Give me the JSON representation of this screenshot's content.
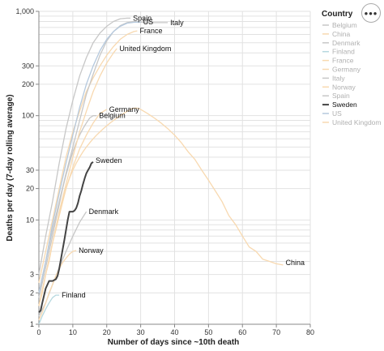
{
  "menu": {
    "icon": "ellipsis-icon",
    "glyph": "•••"
  },
  "chart_data": {
    "type": "line",
    "xlabel": "Number of days since ~10th death",
    "ylabel": "Deaths per day (7-day rolling average)",
    "x_scale": "linear",
    "y_scale": "log",
    "xlim": [
      0,
      80
    ],
    "ylim": [
      1,
      1000
    ],
    "x_ticks": [
      "0",
      "10",
      "20",
      "30",
      "40",
      "50",
      "60",
      "70",
      "80"
    ],
    "y_tick_values": [
      1,
      2,
      3,
      10,
      20,
      30,
      100,
      200,
      300,
      1000
    ],
    "y_tick_labels": [
      "1",
      "2",
      "3",
      "10",
      "20",
      "30",
      "100",
      "200",
      "300",
      "1,000"
    ],
    "grid": true,
    "legend": {
      "title": "Country",
      "position": "right"
    },
    "highlighted": "Sweden",
    "colors": {
      "Belgium": "#c7c7c7",
      "China": "#f8d9b0",
      "Denmark": "#c7c7c7",
      "Finland": "#b6d8df",
      "France": "#f8d9b0",
      "Germany": "#f8d9b0",
      "Italy": "#c7c7c7",
      "Norway": "#f8d9b0",
      "Spain": "#c7c7c7",
      "Sweden": "#444444",
      "US": "#b5c9de",
      "United Kingdom": "#f8d9b0"
    },
    "series": [
      {
        "name": "Belgium",
        "label": "Belgium",
        "label_at": [
          17,
          100
        ],
        "points": [
          [
            0,
            1.8
          ],
          [
            1,
            2.5
          ],
          [
            2,
            3.5
          ],
          [
            3,
            5
          ],
          [
            4,
            7
          ],
          [
            5,
            10
          ],
          [
            6,
            14
          ],
          [
            7,
            20
          ],
          [
            8,
            27
          ],
          [
            9,
            35
          ],
          [
            10,
            45
          ],
          [
            11,
            55
          ],
          [
            12,
            65
          ],
          [
            13,
            75
          ],
          [
            14,
            85
          ],
          [
            15,
            95
          ],
          [
            16,
            100
          ],
          [
            17,
            100
          ]
        ]
      },
      {
        "name": "China",
        "label": "China",
        "label_at": [
          72,
          3.9
        ],
        "points": [
          [
            0,
            1.5
          ],
          [
            1,
            2
          ],
          [
            2,
            3
          ],
          [
            3,
            4
          ],
          [
            4,
            6
          ],
          [
            5,
            8
          ],
          [
            6,
            11
          ],
          [
            7,
            15
          ],
          [
            8,
            20
          ],
          [
            9,
            25
          ],
          [
            10,
            30
          ],
          [
            11,
            35
          ],
          [
            12,
            40
          ],
          [
            13,
            45
          ],
          [
            14,
            50
          ],
          [
            15,
            55
          ],
          [
            16,
            60
          ],
          [
            17,
            65
          ],
          [
            18,
            70
          ],
          [
            19,
            75
          ],
          [
            20,
            80
          ],
          [
            21,
            85
          ],
          [
            22,
            90
          ],
          [
            23,
            95
          ],
          [
            24,
            100
          ],
          [
            25,
            105
          ],
          [
            26,
            110
          ],
          [
            27,
            115
          ],
          [
            28,
            118
          ],
          [
            29,
            118
          ],
          [
            30,
            115
          ],
          [
            32,
            105
          ],
          [
            34,
            95
          ],
          [
            36,
            85
          ],
          [
            38,
            75
          ],
          [
            40,
            65
          ],
          [
            42,
            55
          ],
          [
            44,
            45
          ],
          [
            46,
            38
          ],
          [
            48,
            30
          ],
          [
            50,
            24
          ],
          [
            52,
            19
          ],
          [
            54,
            15
          ],
          [
            56,
            11
          ],
          [
            58,
            9
          ],
          [
            60,
            7
          ],
          [
            62,
            5.5
          ],
          [
            64,
            5
          ],
          [
            66,
            4.2
          ],
          [
            68,
            4
          ],
          [
            70,
            3.8
          ],
          [
            72,
            3.7
          ]
        ]
      },
      {
        "name": "Denmark",
        "label": "Denmark",
        "label_at": [
          14,
          12
        ],
        "points": [
          [
            0,
            1.2
          ],
          [
            2,
            1.6
          ],
          [
            4,
            2.4
          ],
          [
            6,
            3.5
          ],
          [
            8,
            5
          ],
          [
            10,
            7
          ],
          [
            12,
            9.5
          ],
          [
            14,
            12
          ]
        ]
      },
      {
        "name": "Finland",
        "label": "Finland",
        "label_at": [
          6,
          1.9
        ],
        "points": [
          [
            0,
            1
          ],
          [
            1,
            1.2
          ],
          [
            2,
            1.4
          ],
          [
            3,
            1.6
          ],
          [
            4,
            1.8
          ],
          [
            5,
            1.9
          ],
          [
            6,
            1.9
          ]
        ]
      },
      {
        "name": "France",
        "label": "France",
        "label_at": [
          29,
          650
        ],
        "points": [
          [
            0,
            2.5
          ],
          [
            2,
            5
          ],
          [
            4,
            10
          ],
          [
            6,
            20
          ],
          [
            8,
            40
          ],
          [
            10,
            70
          ],
          [
            12,
            110
          ],
          [
            14,
            170
          ],
          [
            16,
            230
          ],
          [
            18,
            300
          ],
          [
            20,
            380
          ],
          [
            22,
            460
          ],
          [
            24,
            540
          ],
          [
            26,
            600
          ],
          [
            28,
            640
          ],
          [
            29,
            650
          ]
        ]
      },
      {
        "name": "Germany",
        "label": "Germany",
        "label_at": [
          20,
          115
        ],
        "points": [
          [
            0,
            1.5
          ],
          [
            2,
            3
          ],
          [
            4,
            6
          ],
          [
            6,
            11
          ],
          [
            8,
            20
          ],
          [
            10,
            32
          ],
          [
            12,
            48
          ],
          [
            14,
            65
          ],
          [
            16,
            85
          ],
          [
            18,
            105
          ],
          [
            20,
            115
          ]
        ]
      },
      {
        "name": "Italy",
        "label": "Italy",
        "label_at": [
          38,
          780
        ],
        "points": [
          [
            0,
            2
          ],
          [
            2,
            4
          ],
          [
            4,
            8
          ],
          [
            6,
            15
          ],
          [
            8,
            28
          ],
          [
            10,
            50
          ],
          [
            12,
            90
          ],
          [
            14,
            160
          ],
          [
            16,
            250
          ],
          [
            18,
            380
          ],
          [
            20,
            520
          ],
          [
            22,
            640
          ],
          [
            24,
            730
          ],
          [
            26,
            780
          ],
          [
            28,
            800
          ],
          [
            30,
            790
          ],
          [
            32,
            780
          ],
          [
            34,
            780
          ],
          [
            36,
            780
          ],
          [
            38,
            780
          ]
        ]
      },
      {
        "name": "Norway",
        "label": "Norway",
        "label_at": [
          11,
          5.1
        ],
        "points": [
          [
            0,
            1.1
          ],
          [
            1,
            1.3
          ],
          [
            2,
            1.6
          ],
          [
            3,
            2
          ],
          [
            4,
            2.4
          ],
          [
            5,
            2.9
          ],
          [
            6,
            3.4
          ],
          [
            7,
            3.9
          ],
          [
            8,
            4.3
          ],
          [
            9,
            4.7
          ],
          [
            10,
            5
          ],
          [
            11,
            5.1
          ]
        ]
      },
      {
        "name": "Spain",
        "label": "Spain",
        "label_at": [
          27,
          860
        ],
        "points": [
          [
            0,
            3
          ],
          [
            2,
            7
          ],
          [
            4,
            15
          ],
          [
            6,
            35
          ],
          [
            8,
            75
          ],
          [
            10,
            140
          ],
          [
            12,
            240
          ],
          [
            14,
            360
          ],
          [
            16,
            500
          ],
          [
            18,
            620
          ],
          [
            20,
            720
          ],
          [
            22,
            800
          ],
          [
            24,
            850
          ],
          [
            26,
            860
          ],
          [
            27,
            860
          ]
        ]
      },
      {
        "name": "Sweden",
        "label": "Sweden",
        "label_at": [
          16,
          37
        ],
        "points": [
          [
            0,
            1.3
          ],
          [
            0.5,
            1.35
          ],
          [
            1,
            1.6
          ],
          [
            2,
            2.2
          ],
          [
            3,
            2.6
          ],
          [
            4,
            2.6
          ],
          [
            5,
            2.7
          ],
          [
            5.5,
            2.9
          ],
          [
            6,
            3.4
          ],
          [
            6.5,
            4.2
          ],
          [
            7,
            5.2
          ],
          [
            7.5,
            6.4
          ],
          [
            8,
            8
          ],
          [
            8.5,
            10
          ],
          [
            9,
            12
          ],
          [
            9.5,
            12
          ],
          [
            10,
            12
          ],
          [
            10.5,
            12.3
          ],
          [
            11,
            13
          ],
          [
            11.5,
            14.5
          ],
          [
            12,
            17
          ],
          [
            12.5,
            19
          ],
          [
            13,
            22
          ],
          [
            13.5,
            25
          ],
          [
            14,
            28
          ],
          [
            14.5,
            30
          ],
          [
            15,
            32
          ],
          [
            15.5,
            35
          ],
          [
            16,
            36
          ]
        ]
      },
      {
        "name": "US",
        "label": "US",
        "label_at": [
          30,
          790
        ],
        "points": [
          [
            0,
            2
          ],
          [
            2,
            4
          ],
          [
            4,
            9
          ],
          [
            6,
            18
          ],
          [
            8,
            35
          ],
          [
            10,
            65
          ],
          [
            12,
            120
          ],
          [
            14,
            200
          ],
          [
            16,
            300
          ],
          [
            18,
            420
          ],
          [
            20,
            540
          ],
          [
            22,
            640
          ],
          [
            24,
            720
          ],
          [
            26,
            770
          ],
          [
            28,
            785
          ],
          [
            30,
            790
          ]
        ]
      },
      {
        "name": "United Kingdom",
        "label": "United Kingdom",
        "label_at": [
          23,
          440
        ],
        "points": [
          [
            0,
            1.5
          ],
          [
            2,
            3
          ],
          [
            4,
            6
          ],
          [
            6,
            12
          ],
          [
            8,
            22
          ],
          [
            10,
            40
          ],
          [
            12,
            70
          ],
          [
            14,
            110
          ],
          [
            16,
            170
          ],
          [
            18,
            240
          ],
          [
            20,
            320
          ],
          [
            22,
            400
          ],
          [
            23,
            440
          ]
        ]
      }
    ]
  }
}
